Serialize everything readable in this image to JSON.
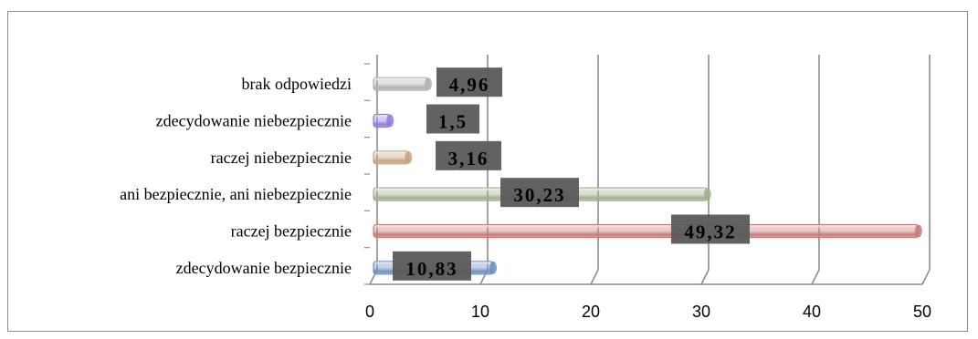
{
  "chart_data": {
    "type": "bar",
    "orientation": "horizontal",
    "style": "3d-cylinder",
    "categories": [
      "zdecydowanie bezpiecznie",
      "raczej bezpiecznie",
      "ani bezpiecznie, ani niebezpiecznie",
      "raczej niebezpiecznie",
      "zdecydowanie niebezpiecznie",
      "brak odpowiedzi"
    ],
    "values": [
      10.83,
      49.32,
      30.23,
      3.16,
      1.5,
      4.96
    ],
    "value_labels": [
      "10,83",
      "49,32",
      "30,23",
      "3,16",
      "1,5",
      "4,96"
    ],
    "colors": [
      "#6f8fbf",
      "#c77a7a",
      "#9fb08f",
      "#c9a27e",
      "#8f7ae0",
      "#b0b0b0"
    ],
    "xlim": [
      0,
      50
    ],
    "xticks": [
      0,
      10,
      20,
      30,
      40,
      50
    ],
    "grid": true,
    "title": "",
    "xlabel": "",
    "ylabel": "",
    "legend": "none"
  }
}
